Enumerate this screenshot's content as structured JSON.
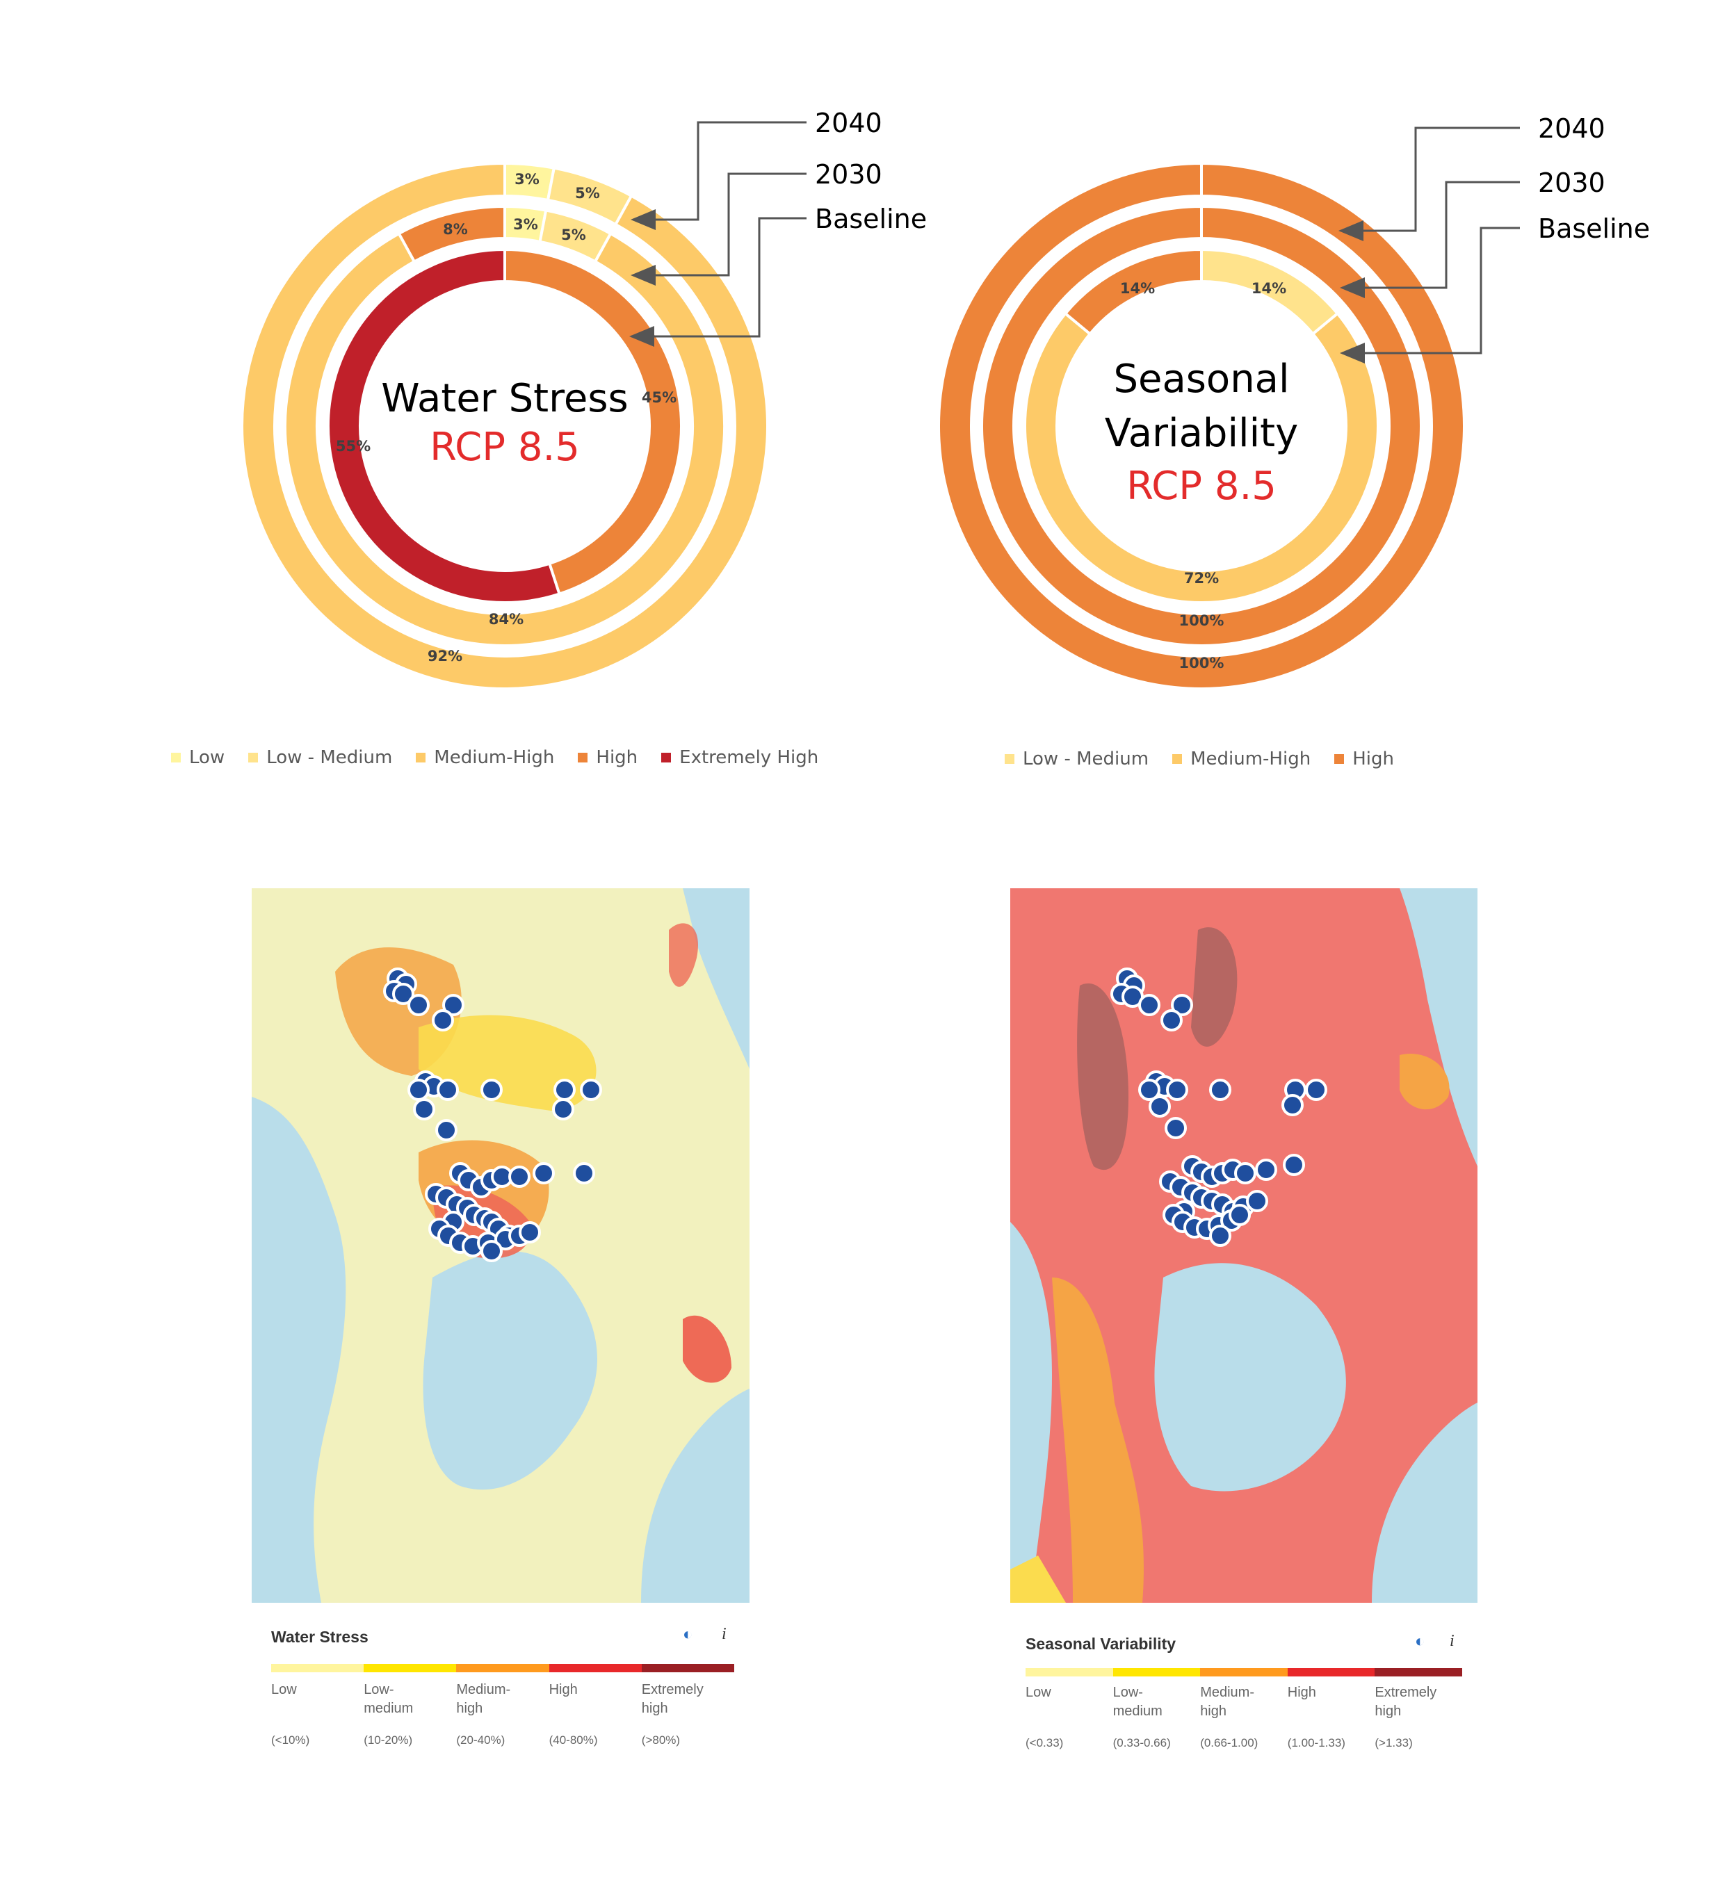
{
  "chart_data": [
    {
      "type": "donut",
      "title": "Water Stress",
      "subtitle": "RCP 8.5",
      "rings": [
        {
          "name": "2040",
          "values": [
            {
              "category": "Low",
              "value": 3,
              "label": "3%"
            },
            {
              "category": "Low - Medium",
              "value": 5,
              "label": "5%"
            },
            {
              "category": "Medium-High",
              "value": 92,
              "label": "92%"
            }
          ]
        },
        {
          "name": "2030",
          "values": [
            {
              "category": "Low",
              "value": 3,
              "label": "3%"
            },
            {
              "category": "Low - Medium",
              "value": 5,
              "label": "5%"
            },
            {
              "category": "Medium-High",
              "value": 84,
              "label": "84%"
            },
            {
              "category": "High",
              "value": 8,
              "label": "8%"
            }
          ]
        },
        {
          "name": "Baseline",
          "values": [
            {
              "category": "High",
              "value": 45,
              "label": "45%"
            },
            {
              "category": "Extremely High",
              "value": 55,
              "label": "55%"
            }
          ]
        }
      ],
      "legend": [
        {
          "name": "Low",
          "color": "#FFF59E"
        },
        {
          "name": "Low - Medium",
          "color": "#FFE38C"
        },
        {
          "name": "Medium-High",
          "color": "#FDCA68"
        },
        {
          "name": "High",
          "color": "#ED8439"
        },
        {
          "name": "Extremely High",
          "color": "#C0202A"
        }
      ]
    },
    {
      "type": "donut",
      "title": "Seasonal Variability",
      "subtitle": "RCP 8.5",
      "rings": [
        {
          "name": "2040",
          "values": [
            {
              "category": "High",
              "value": 100,
              "label": "100%"
            }
          ]
        },
        {
          "name": "2030",
          "values": [
            {
              "category": "High",
              "value": 100,
              "label": "100%"
            }
          ]
        },
        {
          "name": "Baseline",
          "values": [
            {
              "category": "Low - Medium",
              "value": 14,
              "label": "14%"
            },
            {
              "category": "Medium-High",
              "value": 72,
              "label": "72%"
            },
            {
              "category": "High",
              "value": 14,
              "label": "14%"
            }
          ]
        }
      ],
      "legend": [
        {
          "name": "Low - Medium",
          "color": "#FFE38C"
        },
        {
          "name": "Medium-High",
          "color": "#FDCA68"
        },
        {
          "name": "High",
          "color": "#ED8439"
        }
      ]
    }
  ],
  "maps": [
    {
      "name": "water-stress-map",
      "legend_title": "Water Stress",
      "classes": [
        {
          "label": "Low",
          "range": "(<10%)",
          "color": "#FFF59E"
        },
        {
          "label": "Low-\nmedium",
          "range": "(10-20%)",
          "color": "#FFE600"
        },
        {
          "label": "Medium-\nhigh",
          "range": "(20-40%)",
          "color": "#FF9A1E"
        },
        {
          "label": "High",
          "range": "(40-80%)",
          "color": "#E8282A"
        },
        {
          "label": "Extremely\nhigh",
          "range": "(>80%)",
          "color": "#9A1F24"
        }
      ]
    },
    {
      "name": "seasonal-variability-map",
      "legend_title": "Seasonal Variability",
      "classes": [
        {
          "label": "Low",
          "range": "(<0.33)",
          "color": "#FFF59E"
        },
        {
          "label": "Low-\nmedium",
          "range": "(0.33-0.66)",
          "color": "#FFE600"
        },
        {
          "label": "Medium-\nhigh",
          "range": "(0.66-1.00)",
          "color": "#FF9A1E"
        },
        {
          "label": "High",
          "range": "(1.00-1.33)",
          "color": "#E8282A"
        },
        {
          "label": "Extremely\nhigh",
          "range": "(>1.33)",
          "color": "#9A1F24"
        }
      ]
    }
  ],
  "colors": {
    "text": "#000000",
    "accent": "#E32B2B",
    "marker": "#1F4E9E",
    "water": "#B9DDEA"
  },
  "icons": {
    "layer": "half-circle-icon",
    "info": "info-icon"
  }
}
